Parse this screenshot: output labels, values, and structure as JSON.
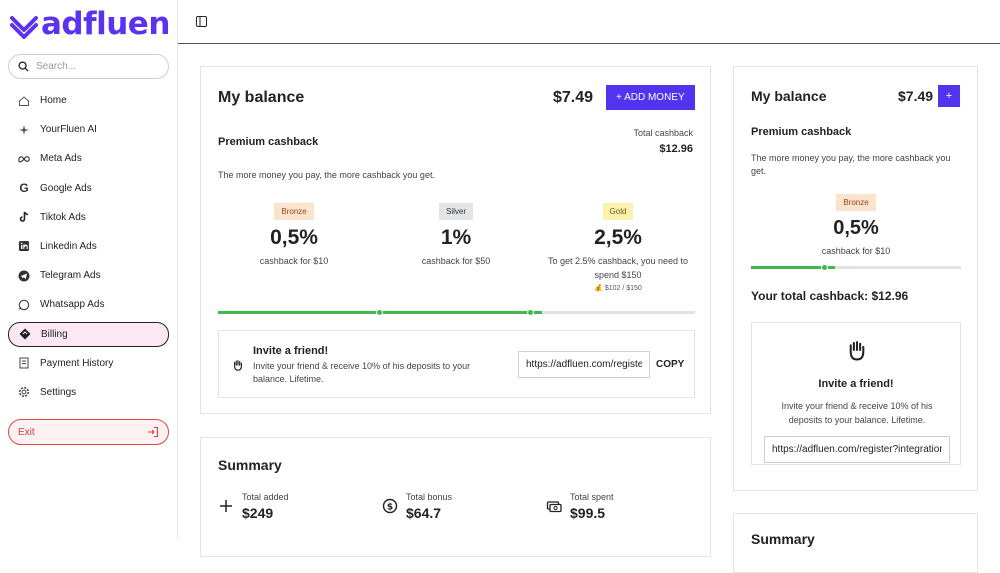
{
  "brand": {
    "name": "adfluen",
    "color": "#5a32f0"
  },
  "search": {
    "placeholder": "Search..."
  },
  "nav": [
    {
      "label": "Home",
      "icon": "home-icon"
    },
    {
      "label": "YourFluen AI",
      "icon": "ai-sparkle-icon"
    },
    {
      "label": "Meta Ads",
      "icon": "meta-icon"
    },
    {
      "label": "Google Ads",
      "icon": "google-icon"
    },
    {
      "label": "Tiktok Ads",
      "icon": "tiktok-icon"
    },
    {
      "label": "Linkedin Ads",
      "icon": "linkedin-icon"
    },
    {
      "label": "Telegram Ads",
      "icon": "telegram-icon"
    },
    {
      "label": "Whatsapp Ads",
      "icon": "whatsapp-icon"
    },
    {
      "label": "Billing",
      "icon": "billing-icon",
      "active": true
    },
    {
      "label": "Payment History",
      "icon": "receipt-icon"
    },
    {
      "label": "Settings",
      "icon": "gear-icon"
    }
  ],
  "exit": {
    "label": "Exit"
  },
  "balance": {
    "title": "My balance",
    "amount": "$7.49",
    "add_money": "+ ADD MONEY",
    "premium_title": "Premium cashback",
    "total_cashback_label": "Total cashback",
    "total_cashback_value": "$12.96",
    "description": "The more money you pay, the more cashback you get.",
    "tiers": [
      {
        "badge": "Bronze",
        "percent": "0,5%",
        "note": "cashback for $10"
      },
      {
        "badge": "Silver",
        "percent": "1%",
        "note": "cashback for $50"
      },
      {
        "badge": "Gold",
        "percent": "2,5%",
        "note": "To get 2.5% cashback, you need to spend $150",
        "progress_text": "💰 $102 / $150"
      }
    ],
    "progress_fraction": 0.68
  },
  "invite": {
    "title": "Invite a friend!",
    "text": "Invite your friend & receive 10% of his deposits to your balance. Lifetime.",
    "link": "https://adfluen.com/register?integration=",
    "copy": "COPY"
  },
  "summary": {
    "title": "Summary",
    "stats": [
      {
        "label": "Total added",
        "value": "$249",
        "icon": "plus-icon"
      },
      {
        "label": "Total bonus",
        "value": "$64.7",
        "icon": "dollar-circle-icon"
      },
      {
        "label": "Total spent",
        "value": "$99.5",
        "icon": "money-icon"
      }
    ]
  },
  "side": {
    "title": "My balance",
    "amount": "$7.49",
    "plus": "+",
    "premium_title": "Premium cashback",
    "description": "The more money you pay, the more cashback you get.",
    "tier_badge": "Bronze",
    "tier_percent": "0,5%",
    "tier_note": "cashback for $10",
    "total_cashback": "Your total cashback: $12.96",
    "invite_title": "Invite a friend!",
    "invite_text": "Invite your friend & receive 10% of his deposits to your balance. Lifetime.",
    "invite_link": "https://adfluen.com/register?integration=",
    "summary_title": "Summary"
  }
}
